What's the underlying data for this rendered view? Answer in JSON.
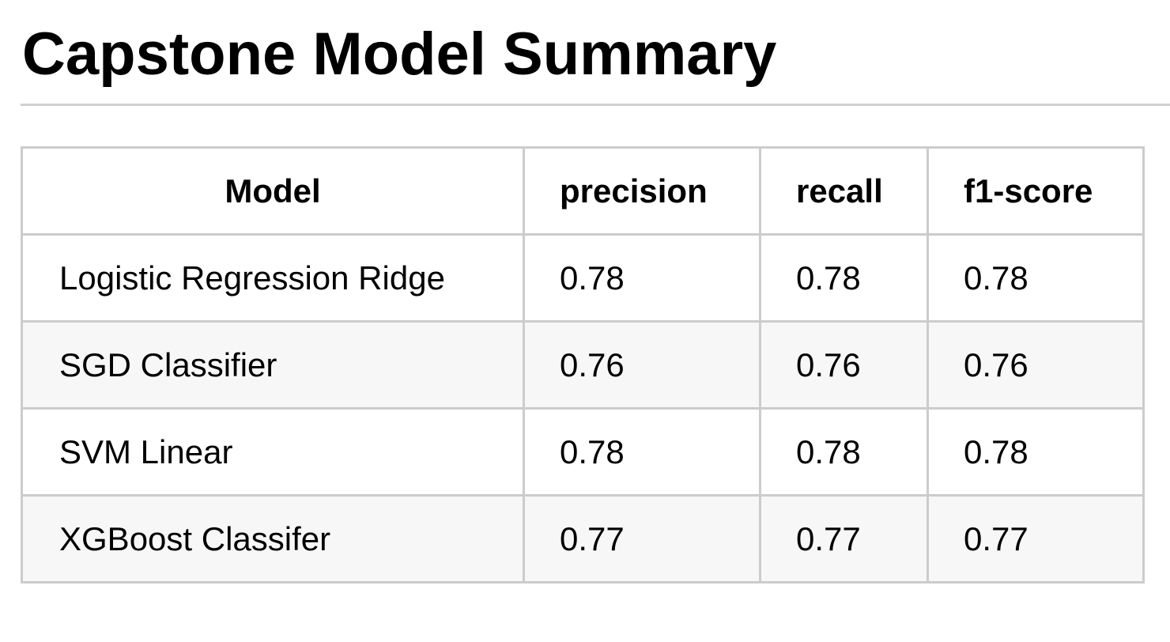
{
  "title": "Capstone Model Summary",
  "table": {
    "headers": [
      "Model",
      "precision",
      "recall",
      "f1-score"
    ],
    "rows": [
      {
        "model": "Logistic Regression Ridge",
        "precision": "0.78",
        "recall": "0.78",
        "f1": "0.78"
      },
      {
        "model": "SGD Classifier",
        "precision": "0.76",
        "recall": "0.76",
        "f1": "0.76"
      },
      {
        "model": "SVM Linear",
        "precision": "0.78",
        "recall": "0.78",
        "f1": "0.78"
      },
      {
        "model": "XGBoost Classifer",
        "precision": "0.77",
        "recall": "0.77",
        "f1": "0.77"
      }
    ]
  }
}
